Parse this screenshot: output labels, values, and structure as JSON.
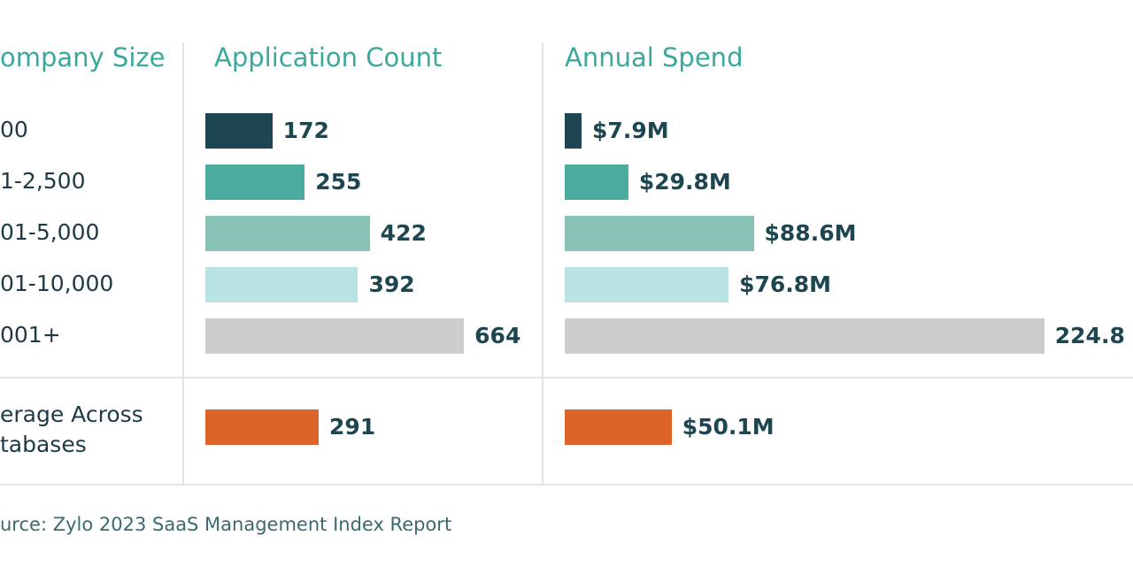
{
  "chart_data": {
    "type": "bar",
    "orientation": "horizontal",
    "headers": {
      "category": "ompany Size",
      "count": "Application Count",
      "spend": "Annual Spend"
    },
    "categories": [
      "00",
      "1-2,500",
      "01-5,000",
      "01-10,000",
      "001+"
    ],
    "average_label": [
      "erage Across",
      "tabases"
    ],
    "series": [
      {
        "name": "Application Count",
        "values": [
          172,
          255,
          422,
          392,
          664
        ],
        "labels": [
          "172",
          "255",
          "422",
          "392",
          "664"
        ],
        "average": 291,
        "average_label": "291"
      },
      {
        "name": "Annual Spend",
        "unit": "$M",
        "values": [
          7.9,
          29.8,
          88.6,
          76.8,
          224.8
        ],
        "labels": [
          "$7.9M",
          "$29.8M",
          "$88.6M",
          "$76.8M",
          "224.8"
        ],
        "average": 50.1,
        "average_label": "$50.1M"
      }
    ],
    "colors": [
      "#1e4650",
      "#4aab9f",
      "#88c2b7",
      "#b9e2e2",
      "#cccccc"
    ],
    "average_color": "#dc6429",
    "source": "urce: Zylo 2023 SaaS Management Index Report"
  }
}
